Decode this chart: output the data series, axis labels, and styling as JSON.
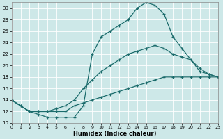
{
  "xlabel": "Humidex (Indice chaleur)",
  "background_color": "#cde8e8",
  "grid_color": "#b0d0d0",
  "line_color": "#1a6b6b",
  "xlim": [
    0,
    23
  ],
  "ylim": [
    10,
    31
  ],
  "xticks": [
    0,
    1,
    2,
    3,
    4,
    5,
    6,
    7,
    8,
    9,
    10,
    11,
    12,
    13,
    14,
    15,
    16,
    17,
    18,
    19,
    20,
    21,
    22,
    23
  ],
  "yticks": [
    10,
    12,
    14,
    16,
    18,
    20,
    22,
    24,
    26,
    28,
    30
  ],
  "line1_x": [
    0,
    1,
    2,
    3,
    4,
    5,
    6,
    7,
    8,
    9,
    10,
    11,
    12,
    13,
    14,
    15,
    16,
    17,
    18,
    19,
    20,
    21,
    22,
    23
  ],
  "line1_y": [
    14,
    13,
    12,
    12,
    12,
    12,
    12,
    13,
    13.5,
    14,
    14.5,
    15,
    15.5,
    16,
    16.5,
    17,
    17.5,
    18,
    18,
    18,
    18,
    18,
    18,
    18
  ],
  "line2_x": [
    0,
    1,
    2,
    3,
    4,
    5,
    6,
    7,
    8,
    9,
    10,
    11,
    12,
    13,
    14,
    15,
    16,
    17,
    18,
    19,
    20,
    21,
    22,
    23
  ],
  "line2_y": [
    14,
    13,
    12,
    12,
    12,
    12.5,
    13,
    14,
    16,
    17.5,
    19,
    20,
    21,
    22,
    22.5,
    23,
    23.5,
    23,
    22,
    21.5,
    21,
    19.5,
    18.5,
    18
  ],
  "line3_x": [
    0,
    2,
    3,
    4,
    5,
    6,
    7,
    8,
    9,
    10,
    11,
    12,
    13,
    14,
    15,
    16,
    17,
    18,
    19,
    21,
    22,
    23
  ],
  "line3_y": [
    14,
    12,
    11.5,
    11,
    11,
    11,
    11,
    13,
    22,
    25,
    26,
    27,
    28,
    30,
    31,
    30.5,
    29,
    25,
    23,
    19,
    18.5,
    18
  ]
}
